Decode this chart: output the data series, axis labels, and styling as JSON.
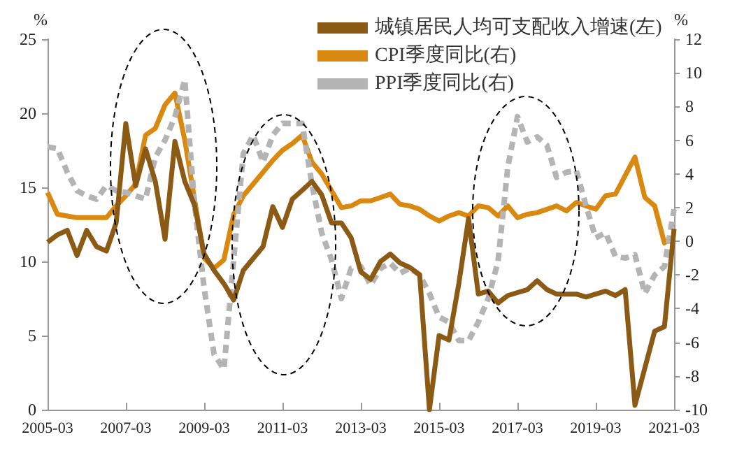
{
  "chart_data": {
    "type": "line",
    "x": [
      "2005-03",
      "2005-06",
      "2005-09",
      "2005-12",
      "2006-03",
      "2006-06",
      "2006-09",
      "2006-12",
      "2007-03",
      "2007-06",
      "2007-09",
      "2007-12",
      "2008-03",
      "2008-06",
      "2008-09",
      "2008-12",
      "2009-03",
      "2009-06",
      "2009-09",
      "2009-12",
      "2010-03",
      "2010-06",
      "2010-09",
      "2010-12",
      "2011-03",
      "2011-06",
      "2011-09",
      "2011-12",
      "2012-03",
      "2012-06",
      "2012-09",
      "2012-12",
      "2013-03",
      "2013-06",
      "2013-09",
      "2013-12",
      "2014-03",
      "2014-06",
      "2014-09",
      "2014-12",
      "2015-03",
      "2015-06",
      "2015-09",
      "2015-12",
      "2016-03",
      "2016-06",
      "2016-09",
      "2016-12",
      "2017-03",
      "2017-06",
      "2017-09",
      "2017-12",
      "2018-03",
      "2018-06",
      "2018-09",
      "2018-12",
      "2019-03",
      "2019-06",
      "2019-09",
      "2019-12",
      "2020-03",
      "2020-06",
      "2020-09",
      "2020-12",
      "2021-03"
    ],
    "series": [
      {
        "name": "城镇居民人均可支配收入增速(左)",
        "color": "#8b5a14",
        "axis": "y",
        "values": [
          11.3,
          11.8,
          12.1,
          10.4,
          12.1,
          11.0,
          10.7,
          12.6,
          19.3,
          15.1,
          17.6,
          15.4,
          11.5,
          18.1,
          15.4,
          13.8,
          10.5,
          9.4,
          8.5,
          7.4,
          9.4,
          10.2,
          11.0,
          13.7,
          12.3,
          14.2,
          14.8,
          15.4,
          14.5,
          12.6,
          12.6,
          11.6,
          9.3,
          8.8,
          10.0,
          10.5,
          9.9,
          9.6,
          9.1,
          0,
          5.0,
          4.7,
          8.5,
          12.9,
          7.8,
          8.0,
          7.2,
          7.7,
          7.9,
          8.1,
          8.7,
          8.1,
          7.8,
          7.8,
          7.8,
          7.6,
          7.8,
          8.0,
          7.7,
          8.1,
          0.3,
          2.8,
          5.3,
          5.6,
          12.2
        ]
      },
      {
        "name": "CPI季度同比(右)",
        "color": "#d9890f",
        "axis": "y2",
        "values": [
          2.9,
          1.6,
          1.5,
          1.4,
          1.4,
          1.4,
          1.4,
          2.1,
          2.7,
          3.4,
          6.3,
          6.7,
          8.1,
          8.8,
          6.0,
          2.5,
          -1.0,
          -1.6,
          -1.1,
          1.6,
          2.7,
          3.4,
          4.1,
          4.8,
          5.4,
          5.8,
          6.3,
          4.7,
          4.0,
          3.0,
          2.0,
          2.1,
          2.4,
          2.4,
          2.6,
          2.8,
          2.2,
          2.1,
          1.9,
          1.5,
          1.2,
          1.5,
          1.7,
          1.5,
          2.1,
          2.0,
          1.5,
          2.1,
          1.4,
          1.6,
          1.7,
          1.9,
          2.1,
          1.8,
          2.3,
          2.1,
          1.9,
          2.7,
          2.8,
          3.9,
          5.0,
          2.6,
          2.1,
          -0.1,
          0.3
        ]
      },
      {
        "name": "PPI季度同比(右)",
        "color": "#b4b4b4",
        "axis": "y2",
        "line_style": "dashed",
        "values": [
          5.6,
          5.5,
          4.1,
          3.0,
          2.7,
          2.5,
          3.3,
          3.0,
          2.9,
          2.7,
          2.5,
          5.0,
          6.0,
          7.4,
          9.6,
          2.2,
          -2.8,
          -6.7,
          -7.6,
          -1.1,
          5.2,
          6.3,
          4.7,
          6.3,
          7.0,
          7.0,
          7.0,
          3.4,
          0.5,
          -1.1,
          -3.4,
          -1.6,
          -1.5,
          -2.6,
          -1.6,
          -1.3,
          -1.9,
          -1.6,
          -2.0,
          -3.1,
          -4.5,
          -4.8,
          -5.9,
          -5.9,
          -4.8,
          -3.4,
          -1.2,
          4.4,
          7.4,
          5.9,
          6.2,
          5.7,
          3.8,
          4.1,
          4.2,
          2.1,
          0.2,
          0.5,
          -0.9,
          -1.0,
          -0.8,
          -3.1,
          -2.0,
          -1.5,
          1.9
        ]
      }
    ],
    "ylabel": "%",
    "y2label": "%",
    "xlim": [
      "2005-03",
      "2021-03"
    ],
    "xticks": [
      "2005-03",
      "2007-03",
      "2009-03",
      "2011-03",
      "2013-03",
      "2015-03",
      "2017-03",
      "2019-03",
      "2021-03"
    ],
    "ylim": [
      0,
      25
    ],
    "yticks": [
      0,
      5,
      10,
      15,
      20,
      25
    ],
    "y2lim": [
      -10,
      12
    ],
    "y2ticks": [
      -10,
      -8,
      -6,
      -4,
      -2,
      0,
      2,
      4,
      6,
      8,
      10,
      12
    ],
    "grid": false,
    "legend": "top",
    "marker": "none",
    "line_style": "solid"
  }
}
